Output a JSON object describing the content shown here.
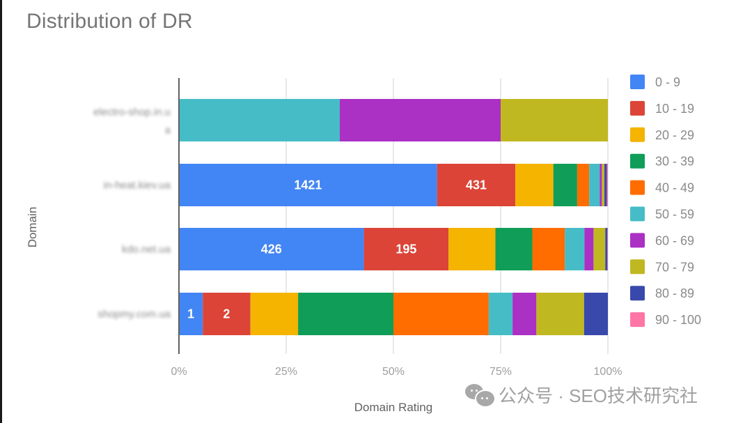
{
  "chart_data": {
    "type": "bar",
    "orientation": "horizontal",
    "stacked": "percent",
    "title": "Distribution of DR",
    "xlabel": "Domain Rating",
    "ylabel": "Domain",
    "xlim": [
      0,
      100
    ],
    "x_ticks": [
      "0%",
      "25%",
      "50%",
      "75%",
      "100%"
    ],
    "grid": true,
    "legend_position": "right",
    "categories": [
      "electro-shop.in.ua",
      "in-heat.kiev.ua",
      "kdo.net.ua",
      "shopmy.com.ua"
    ],
    "series": [
      {
        "name": "0 - 9",
        "color": "#4285f4",
        "values": [
          0,
          1421,
          426,
          1
        ]
      },
      {
        "name": "10 - 19",
        "color": "#db4437",
        "values": [
          0,
          431,
          195,
          2
        ]
      },
      {
        "name": "20 - 29",
        "color": "#f4b400",
        "values": [
          0,
          209,
          108,
          2
        ]
      },
      {
        "name": "30 - 39",
        "color": "#0f9d58",
        "values": [
          0,
          131,
          85,
          4
        ]
      },
      {
        "name": "40 - 49",
        "color": "#ff6d00",
        "values": [
          0,
          66,
          75,
          4
        ]
      },
      {
        "name": "50 - 59",
        "color": "#46bdc6",
        "values": [
          3,
          58,
          45,
          1
        ]
      },
      {
        "name": "60 - 69",
        "color": "#ab30c4",
        "values": [
          3,
          12,
          21,
          1
        ]
      },
      {
        "name": "70 - 79",
        "color": "#c0b820",
        "values": [
          2,
          14,
          27,
          2
        ]
      },
      {
        "name": "80 - 89",
        "color": "#3949ab",
        "values": [
          0,
          14,
          5,
          1
        ]
      },
      {
        "name": "90 - 100",
        "color": "#ff75a5",
        "values": [
          0,
          5,
          1,
          0
        ]
      }
    ],
    "data_labels": [
      {
        "series": "0 - 9",
        "category": "in-heat.kiev.ua",
        "text": "1421"
      },
      {
        "series": "10 - 19",
        "category": "in-heat.kiev.ua",
        "text": "431"
      },
      {
        "series": "0 - 9",
        "category": "kdo.net.ua",
        "text": "426"
      },
      {
        "series": "10 - 19",
        "category": "kdo.net.ua",
        "text": "195"
      },
      {
        "series": "0 - 9",
        "category": "shopmy.com.ua",
        "text": "1"
      },
      {
        "series": "10 - 19",
        "category": "shopmy.com.ua",
        "text": "2"
      }
    ]
  },
  "watermark": {
    "icon": "wechat-icon",
    "text": "公众号 · SEO技术研究社"
  }
}
